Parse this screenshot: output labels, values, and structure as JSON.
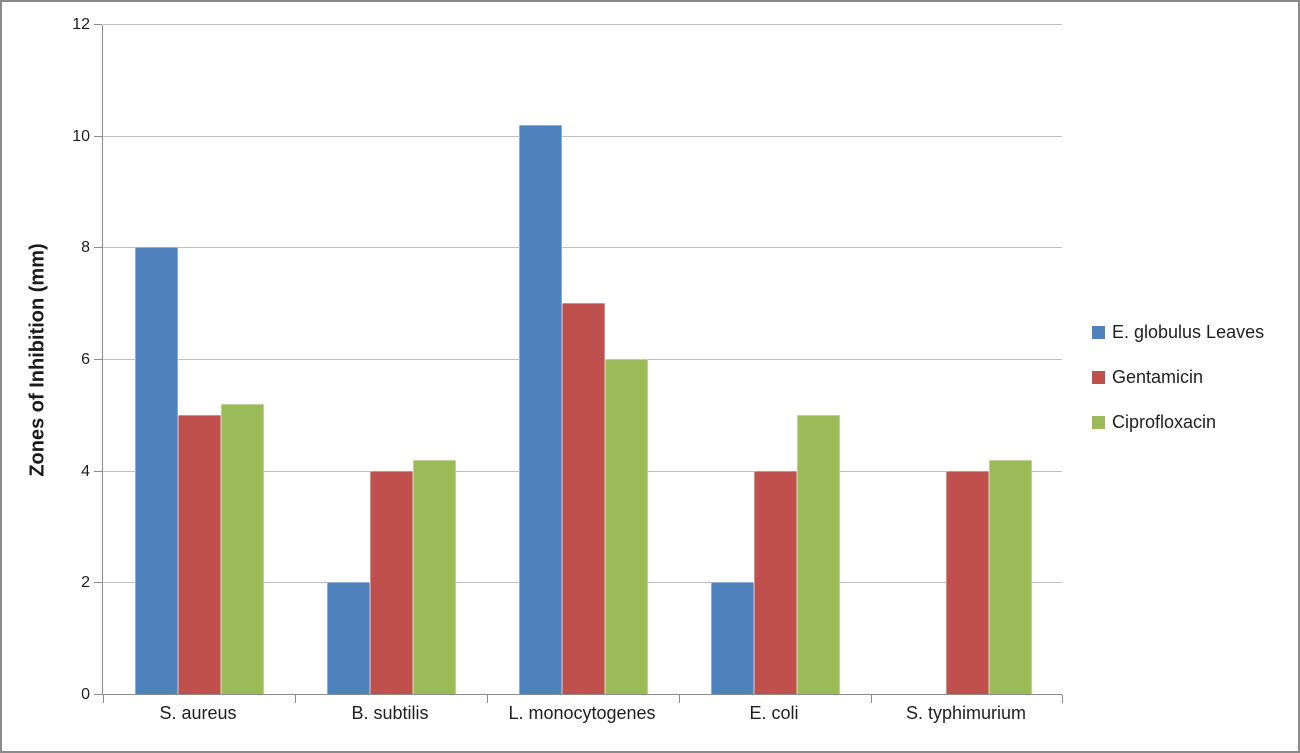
{
  "chart_data": {
    "type": "bar",
    "title": "",
    "xlabel": "",
    "ylabel": "Zones of Inhibition (mm)",
    "ylim": [
      0,
      12
    ],
    "yticks": [
      0,
      2,
      4,
      6,
      8,
      10,
      12
    ],
    "grid": true,
    "legend_position": "right",
    "categories": [
      "S. aureus",
      "B. subtilis",
      "L. monocytogenes",
      "E. coli",
      "S. typhimurium"
    ],
    "series": [
      {
        "name": "E. globulus Leaves",
        "color": "#4F81BD",
        "values": [
          8,
          2,
          10.2,
          2,
          0
        ]
      },
      {
        "name": "Gentamicin",
        "color": "#C0504D",
        "values": [
          5,
          4,
          7,
          4,
          4
        ]
      },
      {
        "name": "Ciprofloxacin",
        "color": "#9BBB59",
        "values": [
          5.2,
          4.2,
          6,
          5,
          4.2
        ]
      }
    ],
    "colors": {
      "gridline": "#BFBFBF",
      "axis": "#8C8C8C",
      "text": "#1F1F1F",
      "frame_border": "#8A8A8A",
      "background": "#FFFFFF"
    }
  }
}
